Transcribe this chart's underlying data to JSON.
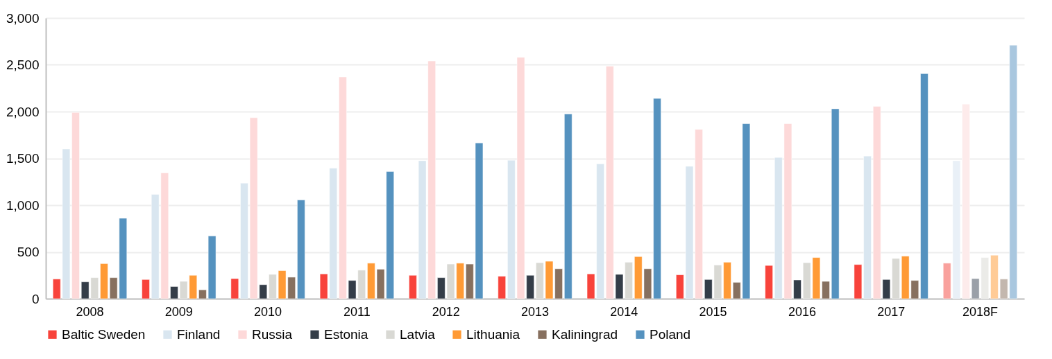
{
  "chart_data": {
    "type": "bar",
    "categories": [
      "2008",
      "2009",
      "2010",
      "2011",
      "2012",
      "2013",
      "2014",
      "2015",
      "2016",
      "2017",
      "2018F"
    ],
    "ylim": [
      0,
      3000
    ],
    "yticks": [
      0,
      {
        "value": 500,
        "label": "500"
      },
      {
        "value": 1000,
        "label": "1,000"
      },
      {
        "value": 1500,
        "label": "1,500"
      },
      {
        "value": 2000,
        "label": "2,000"
      },
      {
        "value": 2500,
        "label": "2,500"
      },
      {
        "value": 3000,
        "label": "3,000"
      }
    ],
    "grid": "y",
    "legend": "bottom",
    "series": [
      {
        "name": "Baltic Sweden",
        "color": "#f8433b",
        "colors": [
          "#f8433b",
          "#f8433b",
          "#f8433b",
          "#f8433b",
          "#f8433b",
          "#f8433b",
          "#f8433b",
          "#f8433b",
          "#f8433b",
          "#f8433b",
          "#f9a19d"
        ],
        "values": [
          210,
          205,
          215,
          265,
          250,
          240,
          265,
          255,
          355,
          365,
          380
        ]
      },
      {
        "name": "Finland",
        "color": "#d9e6f0",
        "colors": [
          "#d9e6f0",
          "#d9e6f0",
          "#d9e6f0",
          "#d9e6f0",
          "#d9e6f0",
          "#d9e6f0",
          "#d9e6f0",
          "#d9e6f0",
          "#d9e6f0",
          "#d9e6f0",
          "#e9f0f7"
        ],
        "values": [
          1600,
          1115,
          1235,
          1395,
          1475,
          1480,
          1440,
          1415,
          1510,
          1525,
          1475
        ]
      },
      {
        "name": "Russia",
        "color": "#fdd9d9",
        "colors": [
          "#fdd9d9",
          "#fdd9d9",
          "#fdd9d9",
          "#fdd9d9",
          "#fdd9d9",
          "#fdd9d9",
          "#fdd9d9",
          "#fdd9d9",
          "#fdd9d9",
          "#fdd9d9",
          "#fdebeb"
        ],
        "values": [
          1990,
          1345,
          1935,
          2370,
          2540,
          2580,
          2485,
          1810,
          1870,
          2055,
          2080
        ]
      },
      {
        "name": "Estonia",
        "color": "#343d48",
        "colors": [
          "#343d48",
          "#343d48",
          "#343d48",
          "#343d48",
          "#343d48",
          "#343d48",
          "#343d48",
          "#343d48",
          "#343d48",
          "#343d48",
          "#9aa0a8"
        ],
        "values": [
          180,
          130,
          150,
          195,
          225,
          250,
          260,
          205,
          200,
          205,
          215
        ]
      },
      {
        "name": "Latvia",
        "color": "#d9d9d4",
        "colors": [
          "#d9d9d4",
          "#d9d9d4",
          "#d9d9d4",
          "#d9d9d4",
          "#d9d9d4",
          "#d9d9d4",
          "#d9d9d4",
          "#d9d9d4",
          "#d9d9d4",
          "#d9d9d4",
          "#ebebe8"
        ],
        "values": [
          225,
          185,
          260,
          305,
          370,
          385,
          390,
          360,
          385,
          430,
          440
        ]
      },
      {
        "name": "Lithuania",
        "color": "#ff9a35",
        "colors": [
          "#ff9a35",
          "#ff9a35",
          "#ff9a35",
          "#ff9a35",
          "#ff9a35",
          "#ff9a35",
          "#ff9a35",
          "#ff9a35",
          "#ff9a35",
          "#ff9a35",
          "#ffcb96"
        ],
        "values": [
          375,
          250,
          300,
          380,
          380,
          400,
          450,
          390,
          440,
          455,
          465
        ]
      },
      {
        "name": "Kaliningrad",
        "color": "#87705f",
        "colors": [
          "#87705f",
          "#87705f",
          "#87705f",
          "#87705f",
          "#87705f",
          "#87705f",
          "#87705f",
          "#87705f",
          "#87705f",
          "#87705f",
          "#c3b7ae"
        ],
        "values": [
          225,
          95,
          230,
          315,
          370,
          320,
          320,
          175,
          185,
          195,
          210
        ]
      },
      {
        "name": "Poland",
        "color": "#5592bf",
        "colors": [
          "#5592bf",
          "#5592bf",
          "#5592bf",
          "#5592bf",
          "#5592bf",
          "#5592bf",
          "#5592bf",
          "#5592bf",
          "#5592bf",
          "#5592bf",
          "#a9c7df"
        ],
        "values": [
          860,
          670,
          1055,
          1360,
          1665,
          1975,
          2140,
          1870,
          2030,
          2405,
          2710
        ]
      }
    ]
  }
}
